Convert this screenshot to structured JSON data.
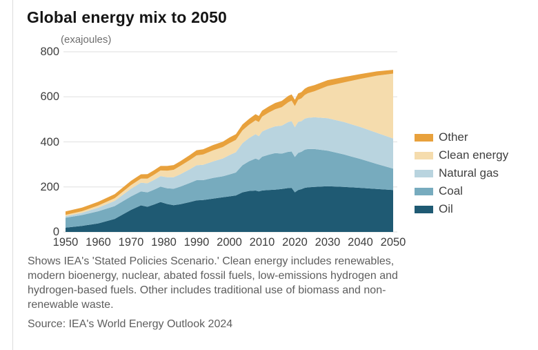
{
  "page": {
    "title": "Global energy mix to 2050",
    "unit_label": "(exajoules)",
    "footnote": "Shows IEA's 'Stated Policies Scenario.' Clean energy includes renewables, modern bioenergy, nuclear, abated fossil fuels, low-emissions hydrogen and hydrogen-based fuels. Other includes traditional use of biomass and non-renewable waste.",
    "source": "Source: IEA's World Energy Outlook 2024"
  },
  "chart_data": {
    "type": "area",
    "stacked": true,
    "title": "Global energy mix to 2050",
    "ylabel": "(exajoules)",
    "xlabel": "",
    "xlim": [
      1950,
      2050
    ],
    "ylim": [
      0,
      800
    ],
    "xticks": [
      1950,
      1960,
      1970,
      1980,
      1990,
      2000,
      2010,
      2020,
      2030,
      2040,
      2050
    ],
    "yticks": [
      0,
      200,
      400,
      600,
      800
    ],
    "grid": true,
    "gridline_color": "#e4e4e4",
    "legend_position": "right",
    "legend_order": [
      "Other",
      "Clean energy",
      "Natural gas",
      "Coal",
      "Oil"
    ],
    "x": [
      1950,
      1955,
      1960,
      1965,
      1970,
      1973,
      1975,
      1977,
      1979,
      1981,
      1983,
      1985,
      1988,
      1990,
      1992,
      1995,
      1998,
      2000,
      2002,
      2004,
      2006,
      2008,
      2009,
      2010,
      2012,
      2014,
      2016,
      2018,
      2019,
      2020,
      2021,
      2022,
      2023,
      2024,
      2026,
      2030,
      2035,
      2040,
      2045,
      2050
    ],
    "series": [
      {
        "name": "Oil",
        "color": "#1F5A73",
        "values": [
          19,
          27,
          38,
          58,
          98,
          118,
          112,
          122,
          133,
          124,
          119,
          123,
          133,
          140,
          142,
          148,
          154,
          158,
          162,
          176,
          182,
          184,
          180,
          184,
          186,
          188,
          191,
          195,
          196,
          176,
          186,
          190,
          196,
          198,
          200,
          203,
          200,
          196,
          191,
          186
        ]
      },
      {
        "name": "Coal",
        "color": "#77ABBE",
        "values": [
          44,
          48,
          54,
          57,
          60,
          62,
          64,
          66,
          68,
          70,
          73,
          78,
          85,
          90,
          88,
          92,
          93,
          97,
          102,
          120,
          132,
          142,
          140,
          150,
          157,
          162,
          157,
          161,
          161,
          157,
          165,
          166,
          169,
          170,
          168,
          158,
          144,
          128,
          111,
          95
        ]
      },
      {
        "name": "Natural gas",
        "color": "#B9D4DF",
        "values": [
          7,
          10,
          16,
          23,
          34,
          39,
          40,
          43,
          47,
          49,
          51,
          55,
          61,
          66,
          68,
          73,
          79,
          86,
          90,
          98,
          103,
          108,
          105,
          112,
          116,
          119,
          124,
          132,
          135,
          132,
          138,
          136,
          138,
          139,
          141,
          144,
          144,
          142,
          138,
          134
        ]
      },
      {
        "name": "Clean energy",
        "color": "#F5DCAD",
        "values": [
          6,
          7,
          9,
          12,
          16,
          18,
          21,
          23,
          25,
          29,
          33,
          37,
          41,
          44,
          46,
          49,
          51,
          53,
          55,
          57,
          59,
          62,
          63,
          66,
          71,
          76,
          82,
          88,
          91,
          94,
          98,
          101,
          105,
          109,
          116,
          143,
          176,
          214,
          254,
          288
        ]
      },
      {
        "name": "Other",
        "color": "#E8A13C",
        "values": [
          15,
          16,
          17,
          18,
          19,
          19,
          20,
          20,
          20,
          21,
          21,
          21,
          22,
          23,
          23,
          24,
          24,
          25,
          25,
          26,
          26,
          27,
          27,
          27,
          27,
          28,
          28,
          28,
          28,
          28,
          28,
          28,
          28,
          28,
          27,
          26,
          24,
          21,
          19,
          17
        ]
      }
    ]
  }
}
